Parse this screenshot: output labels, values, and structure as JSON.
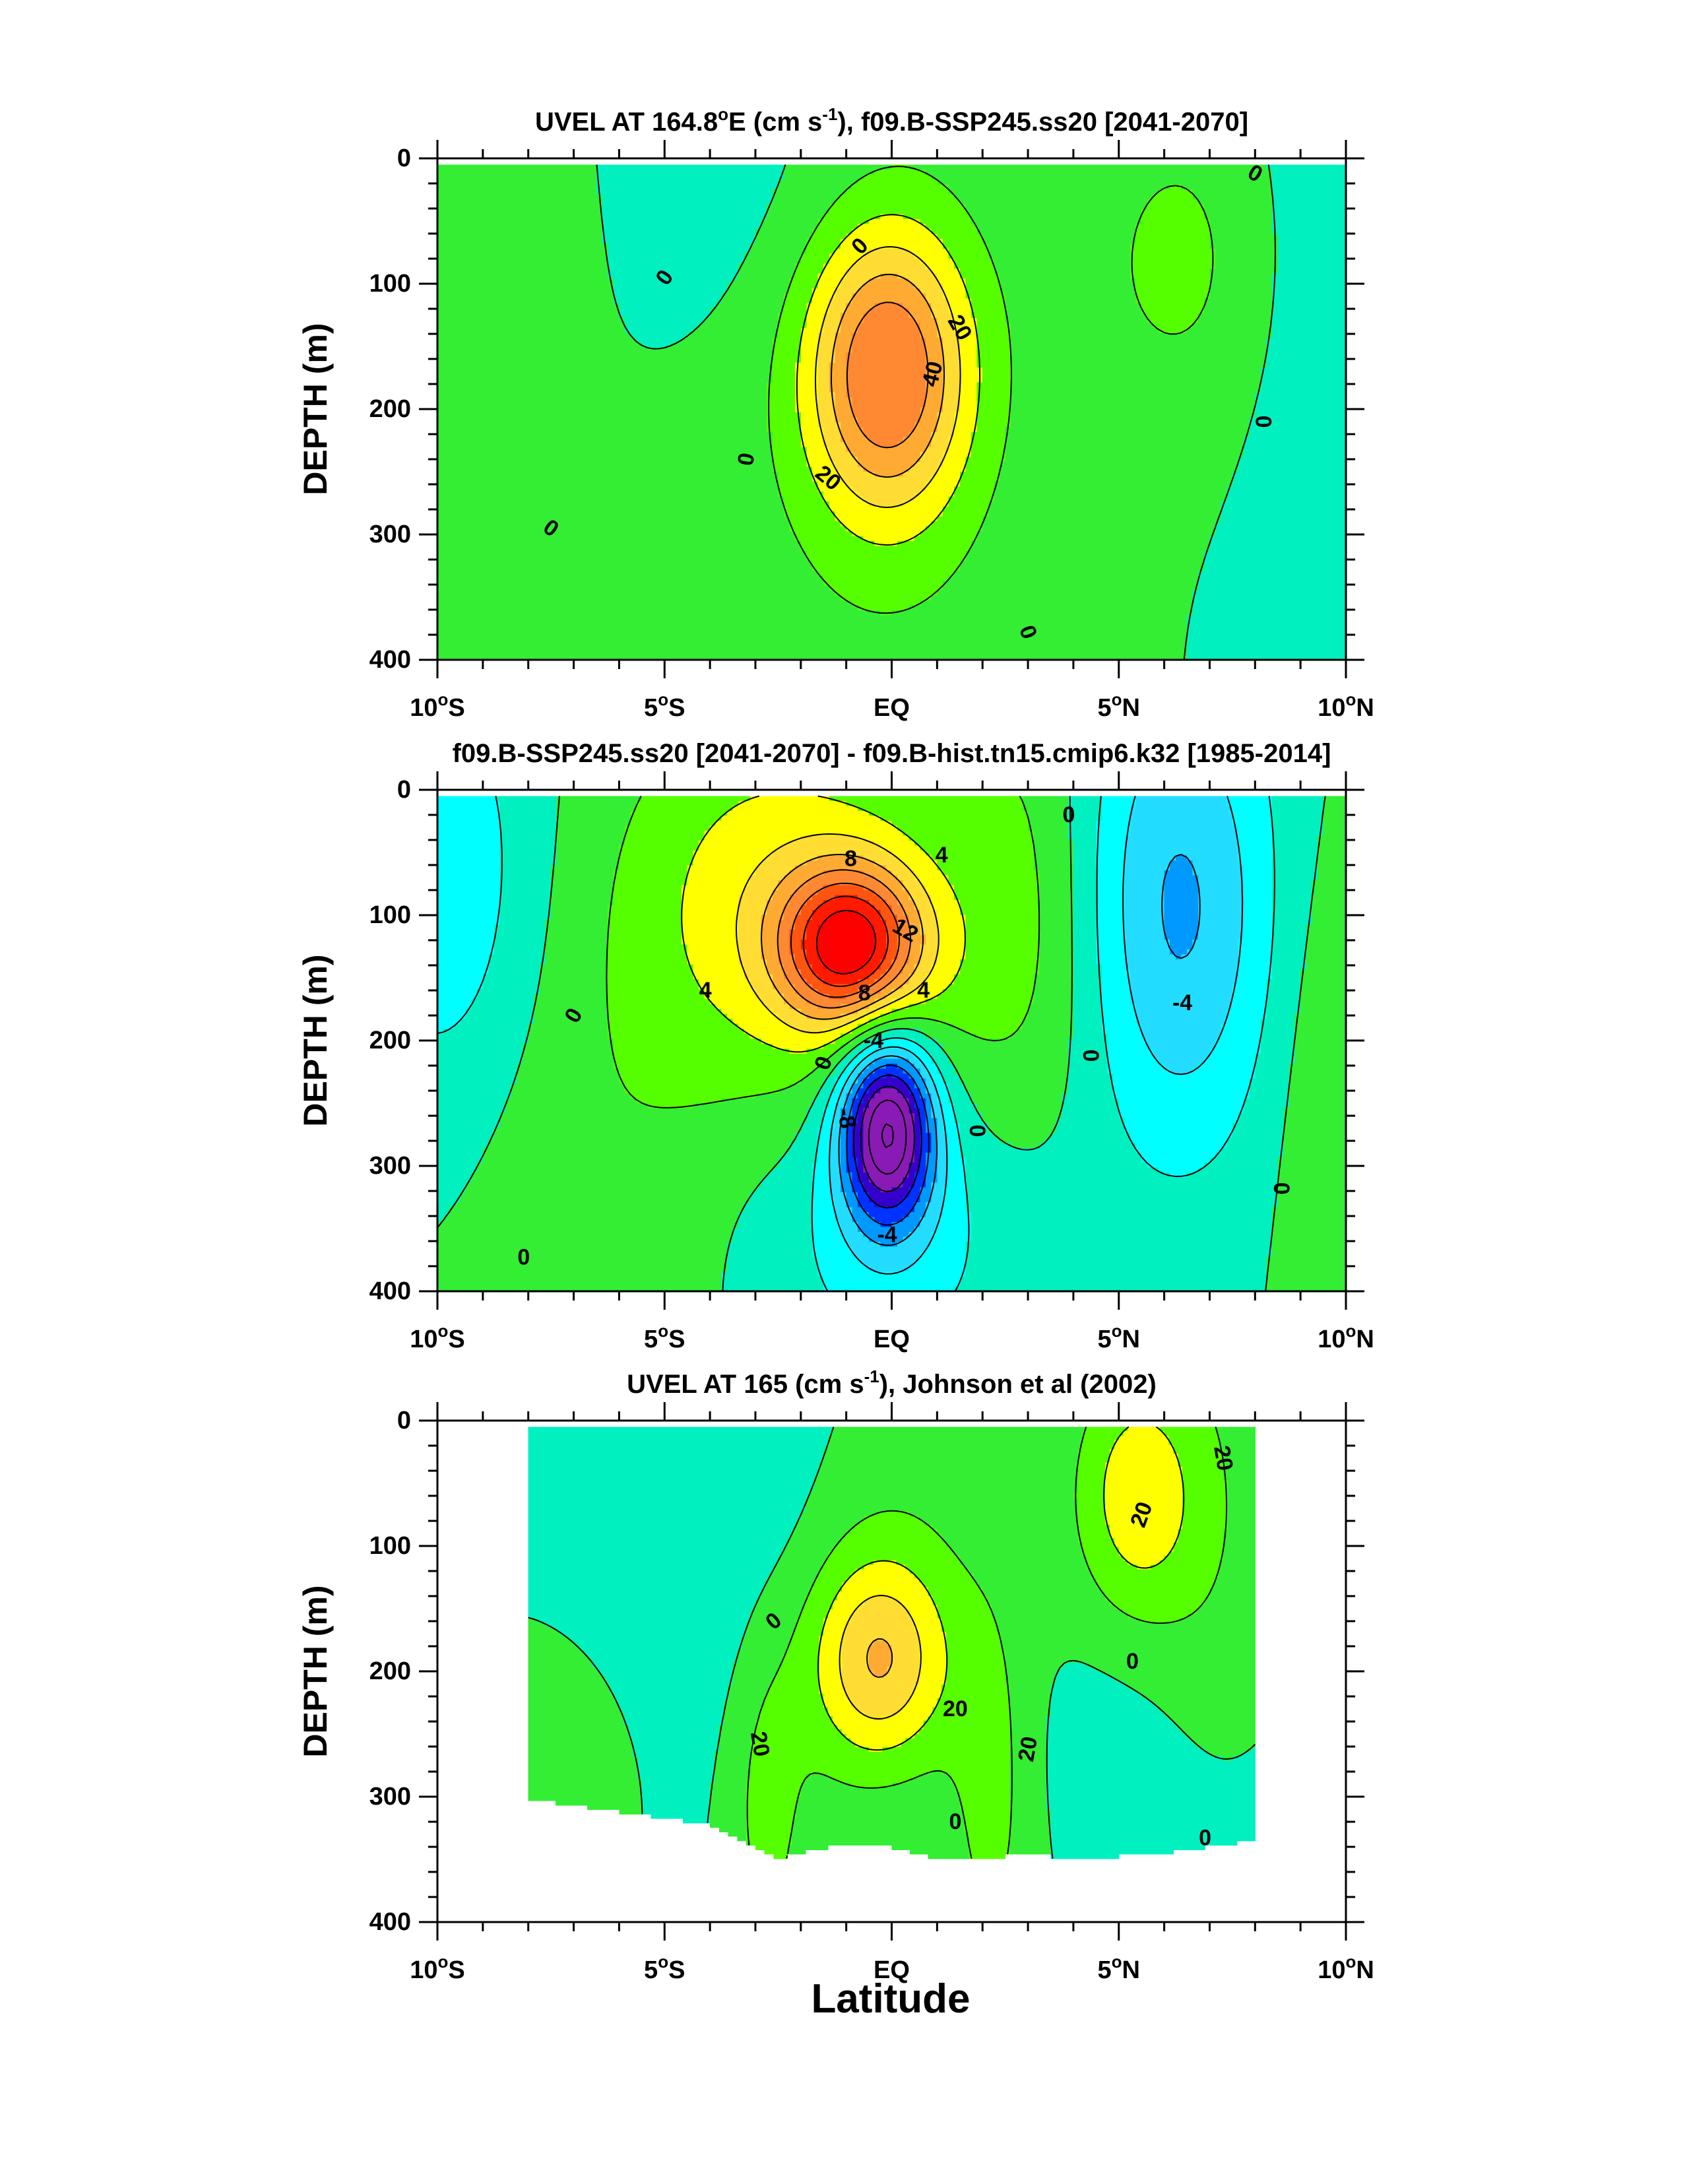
{
  "figure": {
    "xlabel": "Latitude"
  },
  "chart_data": [
    {
      "type": "heatmap",
      "subtype": "filled-contour",
      "title_pre": "UVEL AT 164.8",
      "title_deg": "o",
      "title_mid": "E (cm s",
      "title_sup": "-1",
      "title_post": "), f09.B-SSP245.ss20 [2041-2070]",
      "xlabel": "",
      "ylabel": "DEPTH (m)",
      "x_ticks": [
        {
          "value": -10,
          "num": "10",
          "deg": "o",
          "hem": "S"
        },
        {
          "value": -5,
          "num": "5",
          "deg": "o",
          "hem": "S"
        },
        {
          "value": 0,
          "num": "EQ",
          "deg": "",
          "hem": ""
        },
        {
          "value": 5,
          "num": "5",
          "deg": "o",
          "hem": "N"
        },
        {
          "value": 10,
          "num": "10",
          "deg": "o",
          "hem": "N"
        }
      ],
      "y_ticks": [
        0,
        100,
        200,
        300,
        400
      ],
      "xlim": [
        -10,
        10
      ],
      "ylim": [
        400,
        0
      ],
      "data_x_range": [
        -10,
        10
      ],
      "data_y_range": [
        5,
        400
      ],
      "levels": [
        -10,
        0,
        10,
        20,
        30,
        40,
        50
      ],
      "field_features": [
        {
          "type": "core",
          "lat": -0.1,
          "depth": 170,
          "peak": 55,
          "sigma_lat": 1.2,
          "sigma_depth": 78
        },
        {
          "type": "band",
          "lat": -0.2,
          "depth": 185,
          "peak": 10,
          "sigma_lat": 2.7,
          "sigma_depth": 230
        },
        {
          "type": "core",
          "lat": 6.5,
          "depth": 80,
          "peak": 12,
          "sigma_lat": 1.6,
          "sigma_depth": 100
        },
        {
          "type": "core",
          "lat": -8.8,
          "depth": 40,
          "peak": 9,
          "sigma_lat": 1.8,
          "sigma_depth": 100
        },
        {
          "type": "core",
          "lat": -8.5,
          "depth": 360,
          "peak": 9,
          "sigma_lat": 1.8,
          "sigma_depth": 80
        },
        {
          "type": "core",
          "lat": 10,
          "depth": 120,
          "peak": -10,
          "sigma_lat": 1.5,
          "sigma_depth": 300
        },
        {
          "type": "core",
          "lat": -3.5,
          "depth": 20,
          "peak": -7,
          "sigma_lat": 3,
          "sigma_depth": 100
        }
      ],
      "contour_labels": [
        {
          "text": "0",
          "lat": -5.0,
          "depth": 95,
          "angle": -55
        },
        {
          "text": "0",
          "lat": -7.5,
          "depth": 295,
          "angle": 35
        },
        {
          "text": "0",
          "lat": -3.2,
          "depth": 240,
          "angle": -80
        },
        {
          "text": "0",
          "lat": -0.7,
          "depth": 70,
          "angle": -45
        },
        {
          "text": "20",
          "lat": 1.5,
          "depth": 135,
          "angle": 60
        },
        {
          "text": "40",
          "lat": 0.9,
          "depth": 172,
          "angle": -75
        },
        {
          "text": "20",
          "lat": -1.4,
          "depth": 255,
          "angle": 40
        },
        {
          "text": "0",
          "lat": 8.2,
          "depth": 210,
          "angle": -90
        },
        {
          "text": "0",
          "lat": 8.0,
          "depth": 12,
          "angle": 30
        },
        {
          "text": "0",
          "lat": 3.0,
          "depth": 378,
          "angle": 70
        }
      ]
    },
    {
      "type": "heatmap",
      "subtype": "filled-contour",
      "title_pre": "f09.B-SSP245.ss20 [2041-2070] - f09.B-hist.tn15.cmip6.k32 [1985-2014]",
      "title_deg": "",
      "title_mid": "",
      "title_sup": "",
      "title_post": "",
      "xlabel": "",
      "ylabel": "DEPTH (m)",
      "x_ticks": [
        {
          "value": -10,
          "num": "10",
          "deg": "o",
          "hem": "S"
        },
        {
          "value": -5,
          "num": "5",
          "deg": "o",
          "hem": "S"
        },
        {
          "value": 0,
          "num": "EQ",
          "deg": "",
          "hem": ""
        },
        {
          "value": 5,
          "num": "5",
          "deg": "o",
          "hem": "N"
        },
        {
          "value": 10,
          "num": "10",
          "deg": "o",
          "hem": "N"
        }
      ],
      "y_ticks": [
        0,
        100,
        200,
        300,
        400
      ],
      "xlim": [
        -10,
        10
      ],
      "ylim": [
        400,
        0
      ],
      "data_x_range": [
        -10,
        10
      ],
      "data_y_range": [
        5,
        400
      ],
      "levels": [
        -16,
        -14,
        -12,
        -10,
        -8,
        -6,
        -4,
        -2,
        0,
        2,
        4,
        6,
        8,
        10,
        12,
        14,
        16
      ],
      "field_features": [
        {
          "type": "core",
          "lat": -0.9,
          "depth": 125,
          "peak": 14,
          "sigma_lat": 1.1,
          "sigma_depth": 45
        },
        {
          "type": "core",
          "lat": -0.1,
          "depth": 268,
          "peak": -16,
          "sigma_lat": 0.75,
          "sigma_depth": 55
        },
        {
          "type": "band",
          "lat": -3,
          "depth": 80,
          "peak": 4,
          "sigma_lat": 2.2,
          "sigma_depth": 110
        },
        {
          "type": "core",
          "lat": 0.3,
          "depth": 140,
          "peak": 2.5,
          "sigma_lat": 2.8,
          "sigma_depth": 120
        },
        {
          "type": "core",
          "lat": 6.3,
          "depth": 95,
          "peak": -6.5,
          "sigma_lat": 1.5,
          "sigma_depth": 140
        },
        {
          "type": "core",
          "lat": -9.8,
          "depth": 80,
          "peak": -3.5,
          "sigma_lat": 1.5,
          "sigma_depth": 130
        },
        {
          "type": "core",
          "lat": 0,
          "depth": 350,
          "peak": -3,
          "sigma_lat": 2.3,
          "sigma_depth": 90
        },
        {
          "type": "core",
          "lat": 3,
          "depth": 60,
          "peak": 1.5,
          "sigma_lat": 1.0,
          "sigma_depth": 150
        },
        {
          "type": "core",
          "lat": -6.5,
          "depth": 300,
          "peak": 1.5,
          "sigma_lat": 2.2,
          "sigma_depth": 160
        },
        {
          "type": "core",
          "lat": 9.8,
          "depth": 250,
          "peak": 2,
          "sigma_lat": 0.9,
          "sigma_depth": 150
        }
      ],
      "contour_labels": [
        {
          "text": "8",
          "lat": -0.9,
          "depth": 55,
          "angle": 0
        },
        {
          "text": "4",
          "lat": 1.1,
          "depth": 52,
          "angle": 0
        },
        {
          "text": "12",
          "lat": 0.3,
          "depth": 112,
          "angle": 30
        },
        {
          "text": "8",
          "lat": -0.6,
          "depth": 162,
          "angle": 0
        },
        {
          "text": "4",
          "lat": 0.7,
          "depth": 160,
          "angle": 0
        },
        {
          "text": "4",
          "lat": -4.1,
          "depth": 160,
          "angle": 0
        },
        {
          "text": "0",
          "lat": -7.0,
          "depth": 180,
          "angle": -60
        },
        {
          "text": "0",
          "lat": -1.5,
          "depth": 218,
          "angle": -70
        },
        {
          "text": "-4",
          "lat": -0.4,
          "depth": 200,
          "angle": 0
        },
        {
          "text": "-8",
          "lat": -1.0,
          "depth": 262,
          "angle": 80
        },
        {
          "text": "0",
          "lat": 1.9,
          "depth": 272,
          "angle": -90
        },
        {
          "text": "-4",
          "lat": -0.1,
          "depth": 355,
          "angle": 0
        },
        {
          "text": "0",
          "lat": -8.1,
          "depth": 373,
          "angle": 0
        },
        {
          "text": "0",
          "lat": 3.9,
          "depth": 20,
          "angle": 0
        },
        {
          "text": "0",
          "lat": 4.4,
          "depth": 212,
          "angle": -90
        },
        {
          "text": "-4",
          "lat": 6.4,
          "depth": 170,
          "angle": 0
        },
        {
          "text": "0",
          "lat": 8.6,
          "depth": 318,
          "angle": -90
        }
      ]
    },
    {
      "type": "heatmap",
      "subtype": "filled-contour",
      "title_pre": "UVEL AT 165 (cm s",
      "title_deg": "",
      "title_mid": "",
      "title_sup": "-1",
      "title_post": "), Johnson et al (2002)",
      "xlabel": "Latitude",
      "ylabel": "DEPTH (m)",
      "x_ticks": [
        {
          "value": -10,
          "num": "10",
          "deg": "o",
          "hem": "S"
        },
        {
          "value": -5,
          "num": "5",
          "deg": "o",
          "hem": "S"
        },
        {
          "value": 0,
          "num": "EQ",
          "deg": "",
          "hem": ""
        },
        {
          "value": 5,
          "num": "5",
          "deg": "o",
          "hem": "N"
        },
        {
          "value": 10,
          "num": "10",
          "deg": "o",
          "hem": "N"
        }
      ],
      "y_ticks": [
        0,
        100,
        200,
        300,
        400
      ],
      "xlim": [
        -10,
        10
      ],
      "ylim": [
        400,
        0
      ],
      "data_x_range": [
        -8,
        8
      ],
      "data_y_range": [
        5,
        360
      ],
      "data_bottom_depth": [
        [
          -8,
          302
        ],
        [
          -6,
          312
        ],
        [
          -4,
          322
        ],
        [
          -3,
          340
        ],
        [
          -2.5,
          350
        ],
        [
          -2,
          345
        ],
        [
          -1,
          338
        ],
        [
          0,
          340
        ],
        [
          1,
          350
        ],
        [
          2,
          350
        ],
        [
          3,
          345
        ],
        [
          4,
          350
        ],
        [
          6,
          345
        ],
        [
          8,
          335
        ]
      ],
      "levels": [
        -20,
        -10,
        0,
        10,
        20,
        30,
        40
      ],
      "field_features": [
        {
          "type": "core",
          "lat": -0.3,
          "depth": 190,
          "peak": 30,
          "sigma_lat": 1.0,
          "sigma_depth": 55
        },
        {
          "type": "core",
          "lat": -0.5,
          "depth": 200,
          "peak": 14,
          "sigma_lat": 2.1,
          "sigma_depth": 140
        },
        {
          "type": "core",
          "lat": -2.8,
          "depth": 300,
          "peak": 12,
          "sigma_lat": 0.6,
          "sigma_depth": 100
        },
        {
          "type": "core",
          "lat": 2.2,
          "depth": 300,
          "peak": 12,
          "sigma_lat": 0.6,
          "sigma_depth": 100
        },
        {
          "type": "core",
          "lat": 5.3,
          "depth": 60,
          "peak": 24,
          "sigma_lat": 0.9,
          "sigma_depth": 70
        },
        {
          "type": "core",
          "lat": 6.8,
          "depth": 80,
          "peak": 10,
          "sigma_lat": 1.0,
          "sigma_depth": 120
        },
        {
          "type": "core",
          "lat": -3.5,
          "depth": 80,
          "peak": -12,
          "sigma_lat": 1.8,
          "sigma_depth": 160
        },
        {
          "type": "core",
          "lat": 5.0,
          "depth": 260,
          "peak": -5,
          "sigma_lat": 2,
          "sigma_depth": 80
        },
        {
          "type": "core",
          "lat": -7,
          "depth": 280,
          "peak": 6,
          "sigma_lat": 1,
          "sigma_depth": 60
        },
        {
          "type": "core",
          "lat": 0,
          "depth": 320,
          "peak": -6,
          "sigma_lat": 1.2,
          "sigma_depth": 60
        }
      ],
      "contour_labels": [
        {
          "text": "0",
          "lat": -2.6,
          "depth": 160,
          "angle": -40
        },
        {
          "text": "20",
          "lat": 1.4,
          "depth": 230,
          "angle": 0
        },
        {
          "text": "20",
          "lat": -2.9,
          "depth": 258,
          "angle": 80
        },
        {
          "text": "20",
          "lat": 3.0,
          "depth": 262,
          "angle": -80
        },
        {
          "text": "0",
          "lat": 1.4,
          "depth": 320,
          "angle": 0
        },
        {
          "text": "20",
          "lat": 5.5,
          "depth": 75,
          "angle": -70
        },
        {
          "text": "20",
          "lat": 7.3,
          "depth": 30,
          "angle": 80
        },
        {
          "text": "0",
          "lat": 5.3,
          "depth": 192,
          "angle": 0
        },
        {
          "text": "0",
          "lat": 6.9,
          "depth": 333,
          "angle": 0
        }
      ]
    }
  ],
  "colors": {
    "negative_strong": "#8a1ab4",
    "blue": "#0033ff",
    "cyan": "#00ffff",
    "aqua_green": "#00f0b8",
    "green": "#33ee33",
    "lime": "#55ff00",
    "yellow": "#ffff00",
    "orange": "#ff9933",
    "red": "#ff1a00"
  }
}
